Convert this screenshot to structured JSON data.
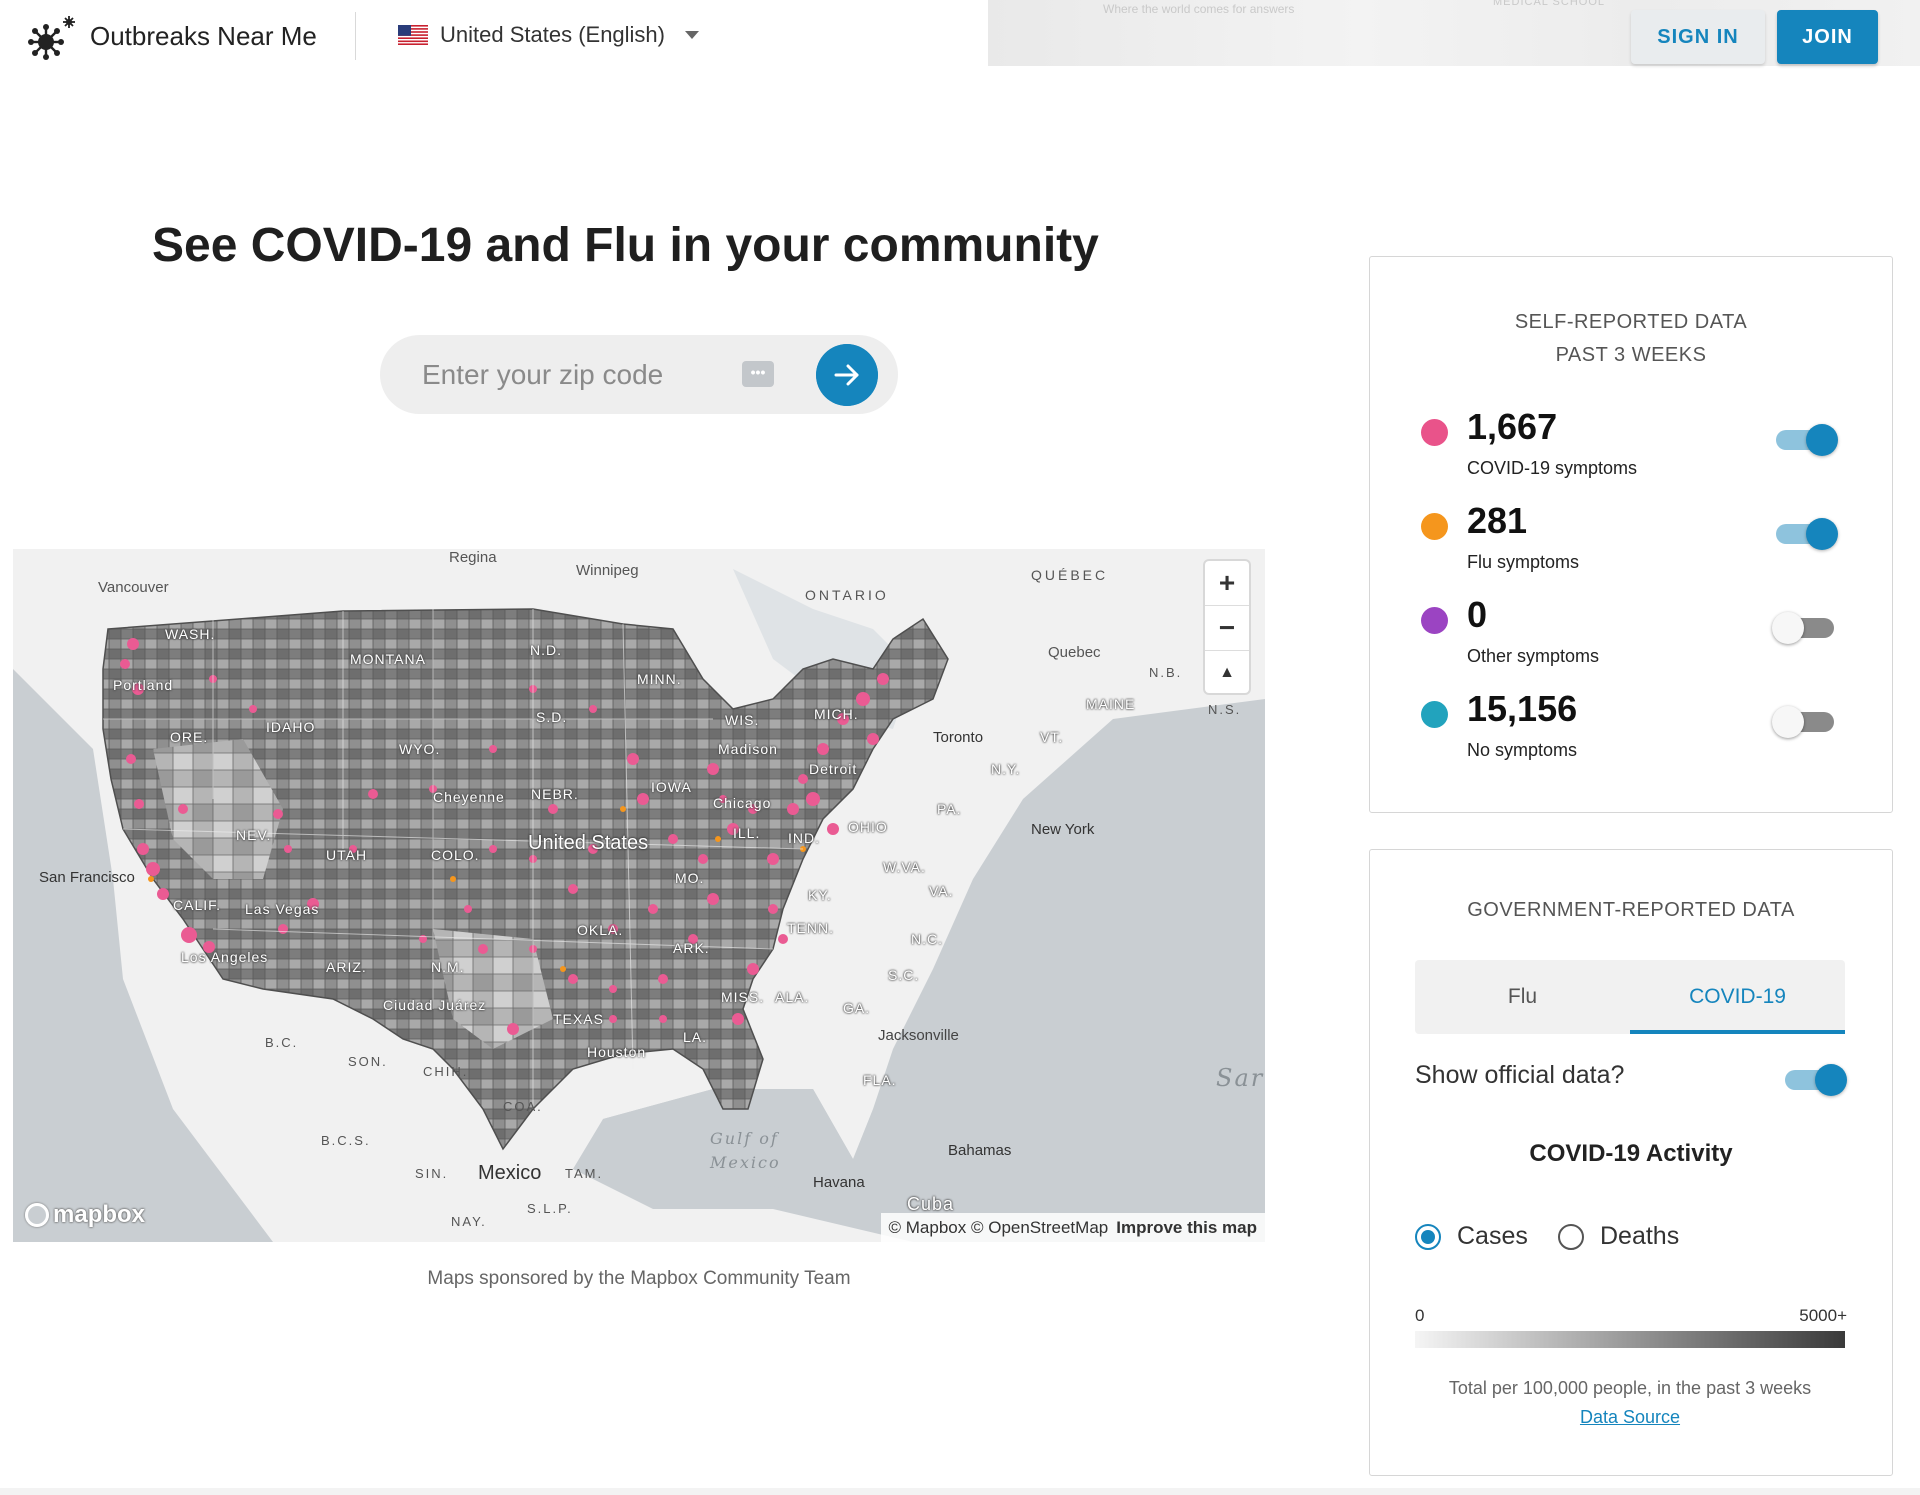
{
  "header": {
    "brand": "Outbreaks Near Me",
    "language": "United States (English)",
    "banner_text": "Where the world comes for answers",
    "banner_text2": "MEDICAL SCHOOL",
    "sign_in": "SIGN IN",
    "join": "JOIN"
  },
  "hero": {
    "title": "See COVID-19 and Flu in your community",
    "zip_placeholder": "Enter your zip code"
  },
  "map": {
    "labels": {
      "regina": "Regina",
      "winnipeg": "Winnipeg",
      "ontario": "ONTARIO",
      "quebec_prov": "QUÉBEC",
      "vancouver": "Vancouver",
      "quebec_city": "Quebec",
      "nb": "N.B.",
      "ns": "N.S.",
      "wash": "WASH.",
      "montana": "MONTANA",
      "nd": "N.D.",
      "minn": "MINN.",
      "maine": "MAINE",
      "portland": "Portland",
      "idaho": "IDAHO",
      "sd": "S.D.",
      "wis": "WIS.",
      "mich": "MICH.",
      "ore": "ORE.",
      "wyo": "WYO.",
      "madison": "Madison",
      "toronto": "Toronto",
      "vt": "VT.",
      "cheyenne": "Cheyenne",
      "nebr": "NEBR.",
      "iowa": "IOWA",
      "detroit": "Detroit",
      "ny": "N.Y.",
      "chicago": "Chicago",
      "pa": "PA.",
      "nev": "NEV.",
      "utah": "UTAH",
      "colo": "COLO.",
      "united_states": "United States",
      "ill": "ILL.",
      "ind": "IND.",
      "ohio": "OHIO",
      "new_york": "New York",
      "san_francisco": "San Francisco",
      "wva": "W.VA.",
      "mo": "MO.",
      "va": "VA.",
      "calif": "CALIF.",
      "las_vegas": "Las Vegas",
      "ky": "KY.",
      "okla": "OKLA.",
      "tenn": "TENN.",
      "nc": "N.C.",
      "los_angeles": "Los Angeles",
      "ark": "ARK.",
      "ariz": "ARIZ.",
      "nm": "N.M.",
      "sc": "S.C.",
      "miss": "MISS.",
      "ala": "ALA.",
      "ga": "GA.",
      "ciudad_juarez": "Ciudad Juárez",
      "texas": "TEXAS",
      "bc": "B.C.",
      "la": "LA.",
      "jacksonville": "Jacksonville",
      "houston": "Houston",
      "son": "SON.",
      "chih": "CHIH.",
      "fla": "FLA.",
      "sar": "Sar",
      "coa": "COA.",
      "gulf1": "Gulf of",
      "gulf2": "Mexico",
      "bcs": "B.C.S.",
      "bahamas": "Bahamas",
      "sin": "SIN.",
      "mexico": "Mexico",
      "tam": "TAM.",
      "havana": "Havana",
      "slp": "S.L.P.",
      "cuba": "Cuba",
      "nay": "NAY."
    },
    "zoom_in": "+",
    "zoom_out": "−",
    "compass": "▲",
    "mapbox_logo": "mapbox",
    "attribution": "© Mapbox © OpenStreetMap",
    "improve": "Improve this map",
    "caption": "Maps sponsored by the Mapbox Community Team"
  },
  "self_reported": {
    "title_line1": "SELF-REPORTED DATA",
    "title_line2": "PAST 3 WEEKS",
    "items": [
      {
        "count": "1,667",
        "label": "COVID-19 symptoms",
        "color": "#e9538a",
        "enabled": true
      },
      {
        "count": "281",
        "label": "Flu symptoms",
        "color": "#f5961d",
        "enabled": true
      },
      {
        "count": "0",
        "label": "Other symptoms",
        "color": "#9b44c2",
        "enabled": false
      },
      {
        "count": "15,156",
        "label": "No symptoms",
        "color": "#22a3bd",
        "enabled": false
      }
    ]
  },
  "government": {
    "title": "GOVERNMENT-REPORTED DATA",
    "tabs": [
      "Flu",
      "COVID-19"
    ],
    "active_tab": "COVID-19",
    "show_official": "Show official data?",
    "show_official_enabled": true,
    "activity_title": "COVID-19 Activity",
    "radio_cases": "Cases",
    "radio_deaths": "Deaths",
    "selected": "Cases",
    "legend_min": "0",
    "legend_max": "5000+",
    "note": "Total per 100,000 people, in the past 3 weeks",
    "data_source": "Data Source"
  },
  "colors": {
    "accent": "#1585bd",
    "covid": "#e9538a"
  }
}
